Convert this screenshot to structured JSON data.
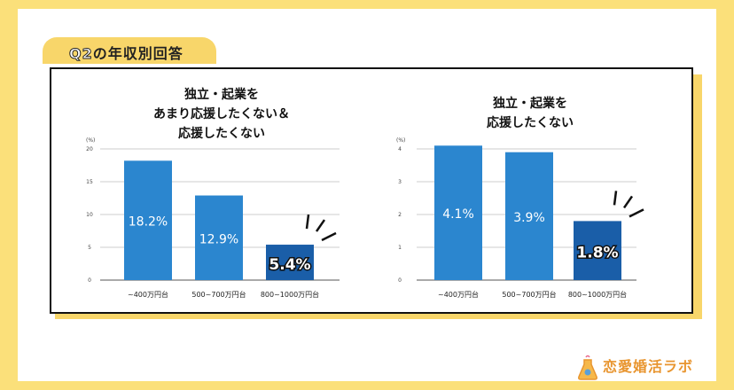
{
  "header": {
    "q_label": "Q2",
    "title": "の年収別回答"
  },
  "brand": {
    "name": "恋愛婚活ラボ"
  },
  "colors": {
    "bar": "#2b86cf",
    "bar_highlight": "#1a5ea8",
    "accent": "#f8d66a"
  },
  "chart_data": [
    {
      "type": "bar",
      "title_lines": [
        "独立・起業を",
        "あまり応援したくない＆",
        "応援したくない"
      ],
      "unit": "(%)",
      "categories": [
        "~400万円台",
        "500~700万円台",
        "800~1000万円台"
      ],
      "values": [
        18.2,
        12.9,
        5.4
      ],
      "labels": [
        "18.2%",
        "12.9%",
        "5.4%"
      ],
      "ylim": [
        0,
        20
      ],
      "yticks": [
        0,
        5,
        10,
        15,
        20
      ],
      "highlight": 2
    },
    {
      "type": "bar",
      "title_lines": [
        "独立・起業を",
        "応援したくない"
      ],
      "unit": "(%)",
      "categories": [
        "~400万円台",
        "500~700万円台",
        "800~1000万円台"
      ],
      "values": [
        4.1,
        3.9,
        1.8
      ],
      "labels": [
        "4.1%",
        "3.9%",
        "1.8%"
      ],
      "ylim": [
        0,
        4
      ],
      "yticks": [
        0,
        1,
        2,
        3,
        4
      ],
      "highlight": 2
    }
  ]
}
